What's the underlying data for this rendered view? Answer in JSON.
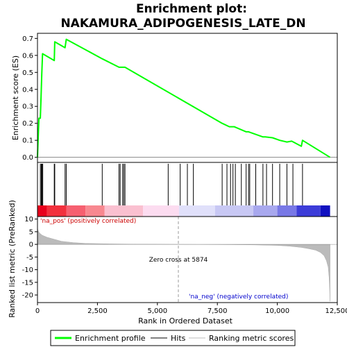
{
  "chart_data": {
    "type": "line",
    "title_line1": "Enrichment plot:",
    "title_line2": "NAKAMURA_ADIPOGENESIS_LATE_DN",
    "top_panel": {
      "ylabel": "Enrichment score (ES)",
      "ylim": [
        -0.03,
        0.73
      ],
      "yticks": [
        "0.0",
        "0.1",
        "0.2",
        "0.3",
        "0.4",
        "0.5",
        "0.6",
        "0.7"
      ],
      "ytick_values": [
        0.0,
        0.1,
        0.2,
        0.3,
        0.4,
        0.5,
        0.6,
        0.7
      ],
      "series": [
        {
          "color": "#00ff00",
          "x": [
            0,
            60,
            120,
            150,
            180,
            210,
            700,
            720,
            1150,
            1200,
            2700,
            3400,
            3500,
            3600,
            3650,
            7700,
            8000,
            8100,
            8200,
            8700,
            8800,
            9400,
            9500,
            9800,
            10100,
            10400,
            10600,
            11000,
            11050,
            12200
          ],
          "y": [
            0.0,
            0.23,
            0.23,
            0.36,
            0.49,
            0.61,
            0.57,
            0.68,
            0.645,
            0.695,
            0.58,
            0.53,
            0.53,
            0.53,
            0.53,
            0.2,
            0.18,
            0.18,
            0.18,
            0.15,
            0.15,
            0.12,
            0.12,
            0.115,
            0.1,
            0.09,
            0.095,
            0.065,
            0.1,
            0.0
          ]
        }
      ]
    },
    "hits_panel": {
      "hit_positions": [
        120,
        160,
        190,
        220,
        700,
        720,
        1150,
        1200,
        2700,
        3400,
        3450,
        3550,
        3600,
        3650,
        5450,
        5950,
        6250,
        6500,
        7700,
        7900,
        8050,
        8150,
        8250,
        8500,
        8700,
        8800,
        8850,
        9100,
        9400,
        9550,
        9800,
        10100,
        10400,
        10650,
        11050
      ],
      "bar_segments": [
        {
          "from": 0,
          "to": 400,
          "color": "#e8001c"
        },
        {
          "from": 400,
          "to": 1200,
          "color": "#f2303d"
        },
        {
          "from": 1200,
          "to": 2000,
          "color": "#f66070"
        },
        {
          "from": 2000,
          "to": 2800,
          "color": "#f88890"
        },
        {
          "from": 2800,
          "to": 4400,
          "color": "#fac0d0"
        },
        {
          "from": 4400,
          "to": 5900,
          "color": "#fcdcf0"
        },
        {
          "from": 5900,
          "to": 7400,
          "color": "#e0e0fa"
        },
        {
          "from": 7400,
          "to": 9000,
          "color": "#c8c8f4"
        },
        {
          "from": 9000,
          "to": 10000,
          "color": "#a8a8ee"
        },
        {
          "from": 10000,
          "to": 10800,
          "color": "#7878e6"
        },
        {
          "from": 10800,
          "to": 11800,
          "color": "#3c3cd8"
        },
        {
          "from": 11800,
          "to": 12200,
          "color": "#1010c0"
        }
      ]
    },
    "bottom_panel": {
      "ylabel": "Ranked list metric (PreRanked)",
      "ylim": [
        -23,
        11
      ],
      "yticks": [
        "10",
        "5",
        "0",
        "-5",
        "-10",
        "-15",
        "-20"
      ],
      "ytick_values": [
        10,
        5,
        0,
        -5,
        -10,
        -15,
        -20
      ],
      "metric_x": [
        0,
        20,
        60,
        120,
        200,
        400,
        700,
        1000,
        1500,
        2000,
        3000,
        4000,
        5000,
        5874,
        7000,
        8000,
        9000,
        10000,
        10500,
        11000,
        11300,
        11600,
        11800,
        11950,
        12050,
        12120,
        12160,
        12180,
        12200
      ],
      "metric_y": [
        6.5,
        5.6,
        4.8,
        4.2,
        3.6,
        2.8,
        2.0,
        1.2,
        0.7,
        0.4,
        0.2,
        0.1,
        0.05,
        0.0,
        -0.05,
        -0.1,
        -0.2,
        -0.4,
        -0.7,
        -1.2,
        -1.7,
        -2.3,
        -3.2,
        -4.5,
        -6.5,
        -9.0,
        -13.0,
        -17.0,
        -22.5
      ],
      "zero_cross_label": "Zero cross at 5874",
      "zero_cross_x": 5874,
      "pos_label": "'na_pos' (positively correlated)",
      "neg_label": "'na_neg' (negatively correlated)",
      "pos_color": "#cc0000",
      "neg_color": "#0000cc"
    },
    "xlabel": "Rank in Ordered Dataset",
    "xlim": [
      0,
      12500
    ],
    "xticks": [
      "0",
      "2,500",
      "5,000",
      "7,500",
      "10,000",
      "12,500"
    ],
    "xtick_values": [
      0,
      2500,
      5000,
      7500,
      10000,
      12500
    ],
    "legend": [
      {
        "label": "Enrichment profile",
        "color": "#00ff00",
        "kind": "line-thick"
      },
      {
        "label": "Hits",
        "color": "#000000",
        "kind": "line"
      },
      {
        "label": "Ranking metric scores",
        "color": "#bbbbbb",
        "kind": "line"
      }
    ]
  }
}
